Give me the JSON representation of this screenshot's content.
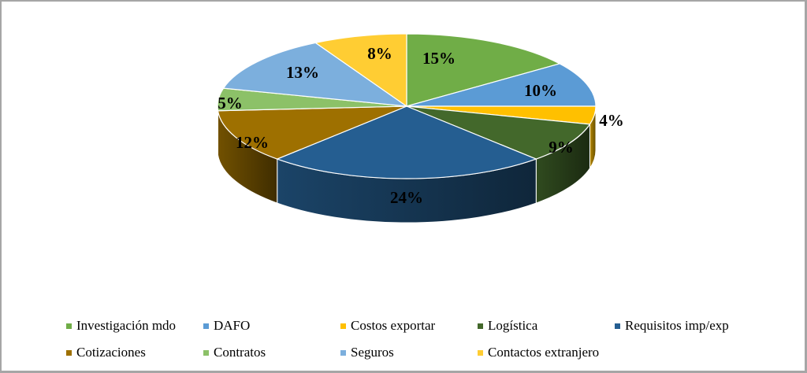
{
  "chart_data": {
    "type": "pie",
    "style": "3d",
    "title": "",
    "categories": [
      "Investigación mdo",
      "DAFO",
      "Costos exportar",
      "Logística",
      "Requisitos imp/exp",
      "Cotizaciones",
      "Contratos",
      "Seguros",
      "Contactos extranjero"
    ],
    "values": [
      15,
      10,
      4,
      9,
      24,
      12,
      5,
      13,
      8
    ],
    "labels": [
      "15%",
      "10%",
      "4%",
      "9%",
      "24%",
      "12%",
      "5%",
      "13%",
      "8%"
    ],
    "colors": [
      "#70ad47",
      "#5b9bd5",
      "#ffc000",
      "#43682b",
      "#255e91",
      "#9e7000",
      "#8cc168",
      "#7cafdd",
      "#ffcd33"
    ],
    "legend_position": "bottom"
  },
  "legend": {
    "items": [
      {
        "label": "Investigación mdo",
        "color": "#70ad47"
      },
      {
        "label": "DAFO",
        "color": "#5b9bd5"
      },
      {
        "label": "Costos exportar",
        "color": "#ffc000"
      },
      {
        "label": "Logística",
        "color": "#43682b"
      },
      {
        "label": "Requisitos imp/exp",
        "color": "#255e91"
      },
      {
        "label": "Cotizaciones",
        "color": "#9e7000"
      },
      {
        "label": "Contratos",
        "color": "#8cc168"
      },
      {
        "label": "Seguros",
        "color": "#7cafdd"
      },
      {
        "label": "Contactos extranjero",
        "color": "#ffcd33"
      }
    ]
  }
}
